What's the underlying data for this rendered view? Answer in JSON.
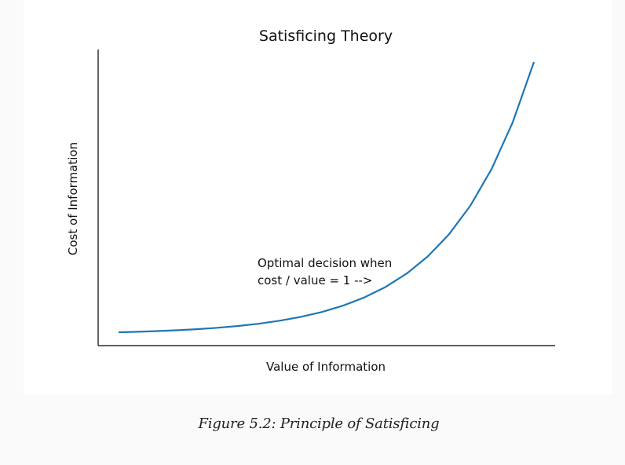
{
  "chart_data": {
    "type": "line",
    "title": "Satisficing Theory",
    "xlabel": "Value of Information",
    "ylabel": "Cost of Information",
    "x_ticks_visible": false,
    "y_ticks_visible": false,
    "grid": false,
    "spines": [
      "left",
      "bottom"
    ],
    "series": [
      {
        "color": "#1f77b4",
        "x": [
          0.1,
          0.25,
          0.5,
          0.75,
          1.0,
          1.25,
          1.5,
          1.75,
          2.0,
          2.25,
          2.5,
          2.75,
          3.0,
          3.25,
          3.5,
          3.75,
          4.0,
          4.25,
          4.5,
          4.75,
          5.0
        ],
        "y": [
          1.11,
          1.28,
          1.65,
          2.12,
          2.72,
          3.49,
          4.48,
          5.75,
          7.39,
          9.49,
          12.18,
          15.64,
          20.09,
          25.79,
          33.12,
          42.52,
          54.6,
          70.11,
          90.02,
          115.58,
          148.41
        ]
      }
    ],
    "annotations": [
      {
        "lines": [
          "Optimal decision when",
          "cost / value = 1 -->"
        ]
      }
    ]
  },
  "caption": "Figure 5.2: Principle of Satisficing"
}
